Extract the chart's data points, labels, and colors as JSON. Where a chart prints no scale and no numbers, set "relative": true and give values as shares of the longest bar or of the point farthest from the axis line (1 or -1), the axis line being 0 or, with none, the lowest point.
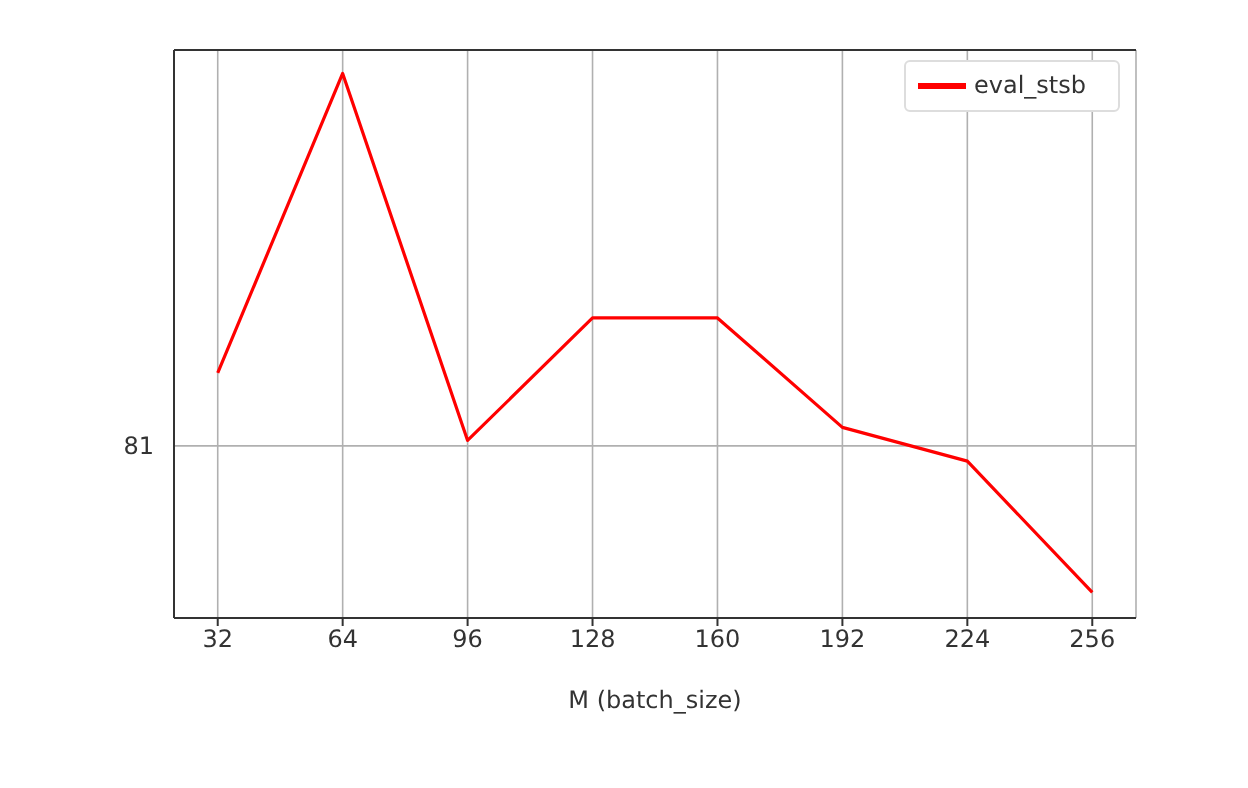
{
  "chart_data": {
    "type": "line",
    "xlabel": "M (batch_size)",
    "x": [
      32,
      64,
      96,
      128,
      160,
      192,
      224,
      256
    ],
    "xlim": [
      20.8,
      267.2
    ],
    "xticks": [
      32,
      64,
      96,
      128,
      160,
      192,
      224,
      256
    ],
    "series": [
      {
        "name": "eval_stsb",
        "color": "#ff0000",
        "values": [
          0.45,
          1,
          0.326,
          0.551,
          0.551,
          0.35,
          0.288,
          0.047
        ]
      }
    ],
    "relative": true,
    "ref_lines": [
      {
        "axis": "y",
        "value": 0.316,
        "color": "#b0b0b0"
      }
    ],
    "annotations": [
      "81"
    ],
    "grid": "x",
    "legend": "top right",
    "marker": "none",
    "line_style": "solid"
  }
}
